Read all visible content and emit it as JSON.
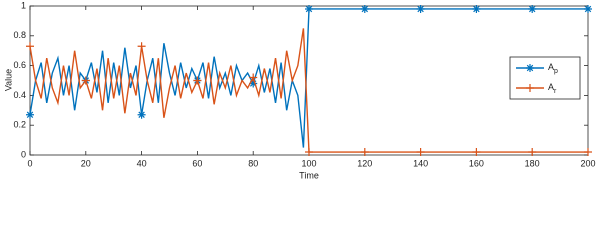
{
  "chart_data": {
    "type": "line",
    "xlabel": "Time",
    "ylabel": "Value",
    "x": [
      0,
      2,
      4,
      6,
      8,
      10,
      12,
      14,
      16,
      18,
      20,
      22,
      24,
      26,
      28,
      30,
      32,
      34,
      36,
      38,
      40,
      42,
      44,
      46,
      48,
      50,
      52,
      54,
      56,
      58,
      60,
      62,
      64,
      66,
      68,
      70,
      72,
      74,
      76,
      78,
      80,
      82,
      84,
      86,
      88,
      90,
      92,
      94,
      96,
      98,
      100,
      120,
      140,
      160,
      180,
      200
    ],
    "series": [
      {
        "name": "Ap",
        "color": "#0072bd",
        "marker": "star",
        "values": [
          0.27,
          0.5,
          0.62,
          0.35,
          0.55,
          0.65,
          0.4,
          0.6,
          0.3,
          0.55,
          0.5,
          0.62,
          0.42,
          0.7,
          0.35,
          0.62,
          0.4,
          0.72,
          0.45,
          0.6,
          0.27,
          0.5,
          0.65,
          0.35,
          0.75,
          0.55,
          0.4,
          0.62,
          0.45,
          0.58,
          0.5,
          0.62,
          0.38,
          0.66,
          0.45,
          0.55,
          0.4,
          0.6,
          0.5,
          0.55,
          0.48,
          0.6,
          0.42,
          0.58,
          0.35,
          0.62,
          0.3,
          0.5,
          0.4,
          0.05,
          0.98,
          0.98,
          0.98,
          0.98,
          0.98,
          0.98
        ]
      },
      {
        "name": "Ar",
        "color": "#d95319",
        "marker": "plus",
        "values": [
          0.73,
          0.5,
          0.38,
          0.65,
          0.45,
          0.35,
          0.6,
          0.4,
          0.7,
          0.45,
          0.5,
          0.38,
          0.58,
          0.3,
          0.65,
          0.38,
          0.6,
          0.28,
          0.55,
          0.4,
          0.73,
          0.5,
          0.35,
          0.65,
          0.25,
          0.45,
          0.6,
          0.38,
          0.55,
          0.42,
          0.5,
          0.38,
          0.62,
          0.34,
          0.55,
          0.45,
          0.6,
          0.4,
          0.5,
          0.45,
          0.52,
          0.4,
          0.58,
          0.42,
          0.65,
          0.38,
          0.7,
          0.5,
          0.6,
          0.85,
          0.02,
          0.02,
          0.02,
          0.02,
          0.02,
          0.02
        ]
      }
    ],
    "xlim": [
      0,
      200
    ],
    "xticks": [
      0,
      20,
      40,
      60,
      80,
      100,
      120,
      140,
      160,
      180,
      200
    ],
    "ylim": [
      0,
      1
    ],
    "yticks": [
      0,
      0.2,
      0.4,
      0.6,
      0.8,
      1
    ],
    "grid": false,
    "legend": "right"
  }
}
